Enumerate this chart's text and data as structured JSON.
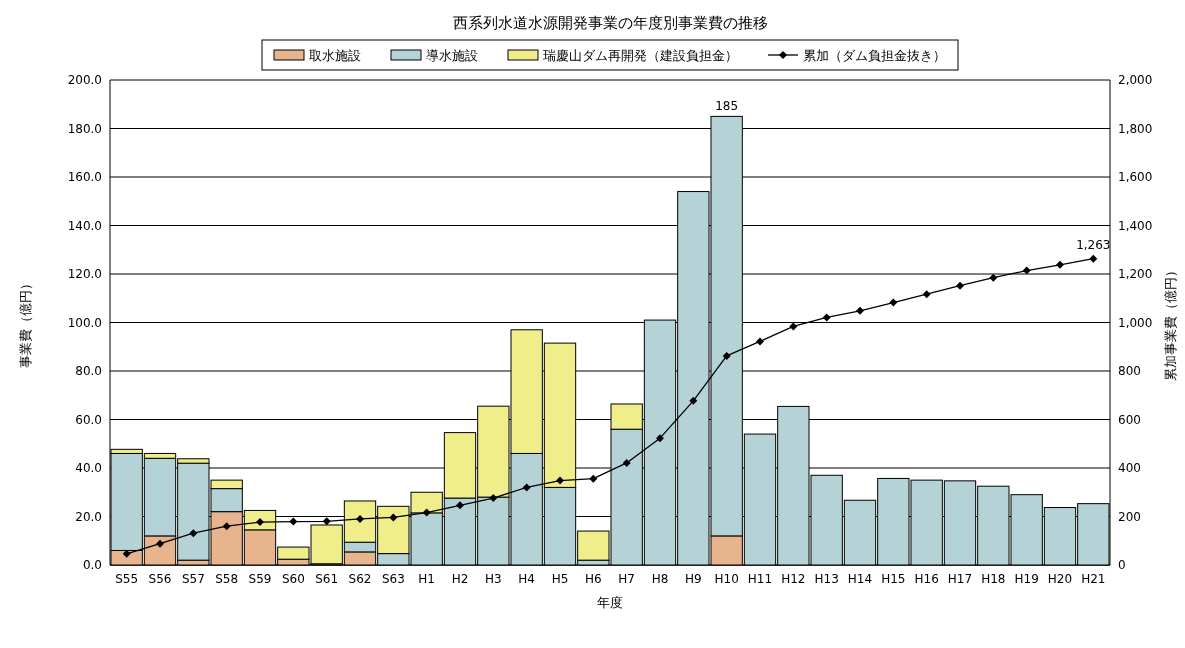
{
  "chart_data": {
    "type": "bar",
    "title": "西系列水道水源開発事業の年度別事業費の推移",
    "xlabel": "年度",
    "ylabel": "事業費（億円）",
    "y2label": "累加事業費（億円）",
    "categories": [
      "S55",
      "S56",
      "S57",
      "S58",
      "S59",
      "S60",
      "S61",
      "S62",
      "S63",
      "H1",
      "H2",
      "H3",
      "H4",
      "H5",
      "H6",
      "H7",
      "H8",
      "H9",
      "H10",
      "H11",
      "H12",
      "H13",
      "H14",
      "H15",
      "H16",
      "H17",
      "H18",
      "H19",
      "H20",
      "H21"
    ],
    "stacked": true,
    "series": [
      {
        "name": "取水施設",
        "color": "#e8b48e",
        "values": [
          6,
          12,
          2,
          22,
          14.5,
          2.4,
          0.5,
          5.4,
          null,
          null,
          null,
          null,
          null,
          null,
          null,
          null,
          null,
          null,
          12,
          null,
          null,
          null,
          null,
          null,
          null,
          null,
          null,
          null,
          null,
          null
        ]
      },
      {
        "name": "導水施設",
        "color": "#b5d3d6",
        "values": [
          40,
          32,
          40,
          9.5,
          null,
          null,
          null,
          4,
          4.7,
          21.5,
          27.6,
          28,
          46,
          32,
          2,
          56,
          101,
          154,
          173,
          54,
          65.4,
          37,
          26.7,
          35.7,
          35,
          34.7,
          32.5,
          29,
          23.7,
          25.3
        ]
      },
      {
        "name": "瑞慶山ダム再開発（建設負担金）",
        "color": "#f0ee8a",
        "values": [
          1.7,
          2,
          1.8,
          3.5,
          8,
          5,
          16,
          17,
          19.5,
          8.5,
          27,
          37.5,
          51,
          59.5,
          12,
          10.4,
          null,
          null,
          null,
          null,
          null,
          null,
          null,
          null,
          null,
          null,
          null,
          null,
          null,
          null
        ]
      },
      {
        "name": "累加（ダム負担金抜き）",
        "type": "line",
        "axis": "y2",
        "color": "#000000",
        "marker": "diamond",
        "values": [
          46,
          88,
          131,
          160,
          177,
          179,
          180,
          190,
          196,
          216,
          246,
          276,
          320,
          348,
          356,
          421,
          523,
          677,
          862,
          922,
          984,
          1021,
          1048,
          1082,
          1117,
          1152,
          1185,
          1214,
          1238,
          1263
        ],
        "value_labels": [
          null,
          null,
          null,
          null,
          null,
          null,
          null,
          null,
          null,
          null,
          null,
          null,
          null,
          null,
          null,
          null,
          null,
          null,
          null,
          null,
          null,
          null,
          null,
          null,
          null,
          null,
          null,
          null,
          null,
          "1,263"
        ]
      }
    ],
    "totals": [
      null,
      null,
      null,
      null,
      null,
      null,
      null,
      null,
      null,
      null,
      null,
      null,
      null,
      null,
      null,
      null,
      null,
      null,
      "185",
      null,
      null,
      null,
      null,
      null,
      null,
      null,
      null,
      null,
      null,
      null
    ],
    "ylim": [
      0,
      200
    ],
    "yticks": [
      {
        "value": 0,
        "label": "0.0"
      },
      {
        "value": 20,
        "label": "20.0"
      },
      {
        "value": 40,
        "label": "40.0"
      },
      {
        "value": 60,
        "label": "60.0"
      },
      {
        "value": 80,
        "label": "80.0"
      },
      {
        "value": 100,
        "label": "100.0"
      },
      {
        "value": 120,
        "label": "120.0"
      },
      {
        "value": 140,
        "label": "140.0"
      },
      {
        "value": 160,
        "label": "160.0"
      },
      {
        "value": 180,
        "label": "180.0"
      },
      {
        "value": 200,
        "label": "200.0"
      }
    ],
    "y2lim": [
      0,
      2000
    ],
    "y2ticks": [
      0,
      200,
      400,
      600,
      800,
      {
        "value": 1000,
        "label": "1,000"
      },
      {
        "value": 1200,
        "label": "1,200"
      },
      {
        "value": 1400,
        "label": "1,400"
      },
      {
        "value": 1600,
        "label": "1,600"
      },
      {
        "value": 1800,
        "label": "1,800"
      },
      {
        "value": 2000,
        "label": "2,000"
      }
    ],
    "grid": "y",
    "legend": "top"
  }
}
